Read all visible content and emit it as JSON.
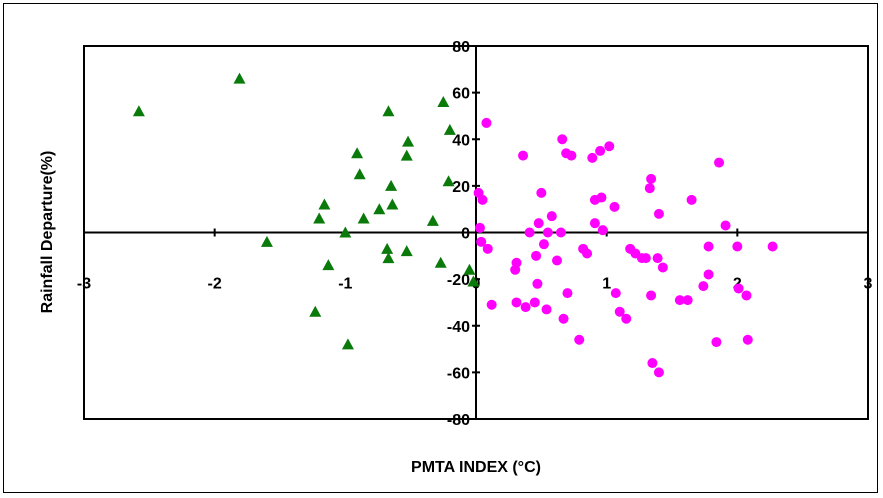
{
  "chart_data": {
    "type": "scatter",
    "title": "",
    "xlabel": "PMTA INDEX (°C)",
    "ylabel": "Rainfall Departure(%)",
    "xlim": [
      -3,
      3
    ],
    "ylim": [
      -80,
      80
    ],
    "x_ticks": [
      "-3",
      "-2",
      "-1",
      "0",
      "1",
      "2",
      "3"
    ],
    "y_ticks": [
      "80",
      "60",
      "40",
      "20",
      "0",
      "-20",
      "-40",
      "-60",
      "-80"
    ],
    "grid": false,
    "legend": "none",
    "series": [
      {
        "marker": "triangle",
        "color": "#0a7a0a",
        "points": [
          [
            -2.58,
            52
          ],
          [
            -1.81,
            66
          ],
          [
            -1.6,
            -4
          ],
          [
            -1.23,
            -34
          ],
          [
            -1.2,
            6
          ],
          [
            -1.16,
            12
          ],
          [
            -1.13,
            -14
          ],
          [
            -1.0,
            0
          ],
          [
            -0.98,
            -48
          ],
          [
            -0.91,
            34
          ],
          [
            -0.89,
            25
          ],
          [
            -0.86,
            6
          ],
          [
            -0.74,
            10
          ],
          [
            -0.67,
            52
          ],
          [
            -0.68,
            -7
          ],
          [
            -0.67,
            -11
          ],
          [
            -0.65,
            20
          ],
          [
            -0.64,
            12
          ],
          [
            -0.53,
            -8
          ],
          [
            -0.53,
            33
          ],
          [
            -0.52,
            39
          ],
          [
            -0.33,
            5
          ],
          [
            -0.27,
            -13
          ],
          [
            -0.25,
            56
          ],
          [
            -0.21,
            22
          ],
          [
            -0.2,
            44
          ],
          [
            -0.05,
            -16
          ],
          [
            -0.02,
            -21
          ]
        ]
      },
      {
        "marker": "circle",
        "color": "#ff00ff",
        "points": [
          [
            0.02,
            17
          ],
          [
            0.05,
            14
          ],
          [
            0.03,
            2
          ],
          [
            0.04,
            -4
          ],
          [
            0.08,
            47
          ],
          [
            0.09,
            -7
          ],
          [
            0.12,
            -31
          ],
          [
            0.3,
            -16
          ],
          [
            0.31,
            -13
          ],
          [
            0.31,
            -30
          ],
          [
            0.36,
            33
          ],
          [
            0.38,
            -32
          ],
          [
            0.41,
            0
          ],
          [
            0.45,
            -30
          ],
          [
            0.46,
            -10
          ],
          [
            0.47,
            -22
          ],
          [
            0.48,
            4
          ],
          [
            0.5,
            17
          ],
          [
            0.52,
            -5
          ],
          [
            0.55,
            0
          ],
          [
            0.54,
            -33
          ],
          [
            0.58,
            7
          ],
          [
            0.62,
            -12
          ],
          [
            0.65,
            0
          ],
          [
            0.66,
            40
          ],
          [
            0.67,
            -37
          ],
          [
            0.69,
            34
          ],
          [
            0.7,
            -26
          ],
          [
            0.73,
            33
          ],
          [
            0.79,
            -46
          ],
          [
            0.82,
            -7
          ],
          [
            0.85,
            -9
          ],
          [
            0.89,
            32
          ],
          [
            0.91,
            14
          ],
          [
            0.91,
            4
          ],
          [
            0.95,
            35
          ],
          [
            0.96,
            15
          ],
          [
            0.97,
            1
          ],
          [
            1.02,
            37
          ],
          [
            1.06,
            11
          ],
          [
            1.07,
            -26
          ],
          [
            1.1,
            -34
          ],
          [
            1.15,
            -37
          ],
          [
            1.18,
            -7
          ],
          [
            1.22,
            -9
          ],
          [
            1.27,
            -11
          ],
          [
            1.3,
            -11
          ],
          [
            1.33,
            19
          ],
          [
            1.34,
            23
          ],
          [
            1.34,
            -27
          ],
          [
            1.35,
            -56
          ],
          [
            1.39,
            -11
          ],
          [
            1.4,
            8
          ],
          [
            1.4,
            -60
          ],
          [
            1.43,
            -15
          ],
          [
            1.56,
            -29
          ],
          [
            1.62,
            -29
          ],
          [
            1.65,
            14
          ],
          [
            1.74,
            -23
          ],
          [
            1.78,
            -6
          ],
          [
            1.78,
            -18
          ],
          [
            1.84,
            -47
          ],
          [
            1.86,
            30
          ],
          [
            1.91,
            3
          ],
          [
            2.0,
            -6
          ],
          [
            2.01,
            -24
          ],
          [
            2.07,
            -27
          ],
          [
            2.08,
            -46
          ],
          [
            2.27,
            -6
          ]
        ]
      }
    ]
  }
}
